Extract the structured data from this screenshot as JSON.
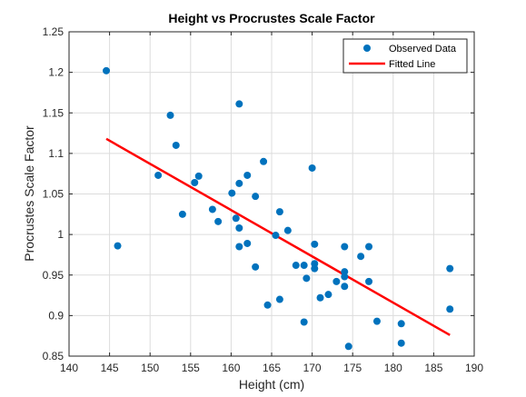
{
  "chart_data": {
    "type": "scatter",
    "title": "Height vs Procrustes Scale Factor",
    "xlabel": "Height (cm)",
    "ylabel": "Procrustes Scale Factor",
    "xlim": [
      140,
      190
    ],
    "ylim": [
      0.85,
      1.25
    ],
    "xticks": [
      140,
      145,
      150,
      155,
      160,
      165,
      170,
      175,
      180,
      185,
      190
    ],
    "yticks": [
      0.85,
      0.9,
      0.95,
      1,
      1.05,
      1.1,
      1.15,
      1.2,
      1.25
    ],
    "ytick_labels": [
      "0.85",
      "0.9",
      "0.95",
      "1",
      "1.05",
      "1.1",
      "1.15",
      "1.2",
      "1.25"
    ],
    "grid": true,
    "legend_position": "top-right",
    "series": [
      {
        "name": "Observed Data",
        "kind": "scatter",
        "color": "#0072BD",
        "points": [
          [
            144.6,
            1.202
          ],
          [
            146.0,
            0.986
          ],
          [
            151.0,
            1.073
          ],
          [
            152.5,
            1.147
          ],
          [
            153.2,
            1.11
          ],
          [
            154.0,
            1.025
          ],
          [
            155.5,
            1.064
          ],
          [
            156.0,
            1.072
          ],
          [
            157.7,
            1.031
          ],
          [
            158.4,
            1.016
          ],
          [
            160.1,
            1.051
          ],
          [
            160.6,
            1.02
          ],
          [
            161.0,
            1.063
          ],
          [
            161.0,
            1.161
          ],
          [
            161.0,
            1.008
          ],
          [
            161.0,
            0.985
          ],
          [
            162.0,
            1.073
          ],
          [
            162.0,
            0.989
          ],
          [
            163.0,
            1.047
          ],
          [
            163.0,
            0.96
          ],
          [
            164.0,
            1.09
          ],
          [
            164.5,
            0.913
          ],
          [
            165.5,
            0.999
          ],
          [
            166.0,
            1.028
          ],
          [
            166.0,
            0.92
          ],
          [
            167.0,
            1.005
          ],
          [
            168.0,
            0.962
          ],
          [
            169.0,
            0.962
          ],
          [
            169.0,
            0.892
          ],
          [
            169.3,
            0.946
          ],
          [
            170.0,
            1.082
          ],
          [
            170.3,
            0.988
          ],
          [
            170.3,
            0.964
          ],
          [
            170.3,
            0.958
          ],
          [
            171.0,
            0.922
          ],
          [
            172.0,
            0.926
          ],
          [
            173.0,
            0.942
          ],
          [
            174.0,
            0.985
          ],
          [
            174.0,
            0.954
          ],
          [
            174.0,
            0.948
          ],
          [
            174.0,
            0.936
          ],
          [
            174.5,
            0.862
          ],
          [
            176.0,
            0.973
          ],
          [
            177.0,
            0.985
          ],
          [
            177.0,
            0.942
          ],
          [
            178.0,
            0.893
          ],
          [
            181.0,
            0.89
          ],
          [
            181.0,
            0.866
          ],
          [
            187.0,
            0.958
          ],
          [
            187.0,
            0.908
          ]
        ]
      },
      {
        "name": "Fitted Line",
        "kind": "line",
        "color": "#FF0000",
        "points": [
          [
            144.6,
            1.118
          ],
          [
            187.0,
            0.876
          ]
        ]
      }
    ]
  }
}
